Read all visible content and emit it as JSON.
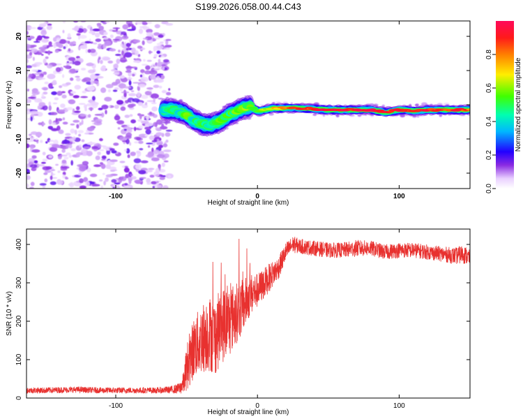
{
  "figure_title": "S199.2026.058.00.44.C43",
  "chart_data": [
    {
      "type": "heatmap",
      "name": "spectrogram",
      "title": "S199.2026.058.00.44.C43",
      "xlabel": "Height of straight line (km)",
      "ylabel": "Frequency (Hz)",
      "xlim": [
        -163,
        150
      ],
      "ylim": [
        -24.5,
        24.5
      ],
      "xticks": [
        -100,
        0,
        100
      ],
      "yticks": [
        -20,
        -10,
        0,
        10,
        20
      ],
      "noise_region_x": [
        -163,
        -65
      ],
      "ridge": {
        "x": [
          -65,
          -60,
          -55,
          -50,
          -45,
          -40,
          -35,
          -30,
          -25,
          -20,
          -15,
          -10,
          -5,
          0,
          5,
          10,
          15,
          20,
          30,
          40,
          50,
          60,
          70,
          80,
          90,
          100,
          110,
          120,
          130,
          140,
          148
        ],
        "freq": [
          -1.5,
          -1.5,
          -2.0,
          -3.0,
          -4.5,
          -5.5,
          -6.0,
          -5.5,
          -4.5,
          -3.0,
          -2.0,
          -1.0,
          -0.5,
          -2.0,
          -1.5,
          -1.0,
          -1.0,
          -1.0,
          -1.0,
          -1.2,
          -1.5,
          -1.5,
          -1.5,
          -1.5,
          -2.2,
          -1.5,
          -1.8,
          -1.5,
          -1.5,
          -1.5,
          -1.5
        ],
        "amplitude": [
          0.45,
          0.5,
          0.45,
          0.55,
          0.45,
          0.55,
          0.45,
          0.5,
          0.55,
          0.5,
          0.55,
          0.6,
          0.55,
          0.5,
          0.6,
          0.7,
          0.75,
          0.8,
          0.85,
          0.9,
          0.95,
          0.95,
          0.9,
          0.95,
          0.9,
          0.95,
          0.9,
          0.9,
          0.85,
          0.9,
          0.85
        ]
      },
      "colorbar": {
        "label": "Normalized spectral amplitude",
        "ticks": [
          0.0,
          0.2,
          0.4,
          0.6,
          0.8
        ],
        "tick_labels": [
          "0.0",
          "0.2",
          "0.4",
          "0.6",
          "0.8"
        ],
        "range": [
          0,
          1
        ]
      }
    },
    {
      "type": "line",
      "name": "snr",
      "xlabel": "Height of straight line (km)",
      "ylabel": "SNR (10 * v/v)",
      "xlim": [
        -163,
        150
      ],
      "ylim": [
        0,
        440
      ],
      "xticks": [
        -100,
        0,
        100
      ],
      "yticks": [
        0,
        100,
        200,
        300,
        400
      ],
      "color": "#e8312f",
      "series": [
        {
          "name": "SNR",
          "x": [
            -163,
            -150,
            -130,
            -110,
            -90,
            -70,
            -60,
            -55,
            -52,
            -50,
            -45,
            -40,
            -35,
            -30,
            -25,
            -20,
            -15,
            -10,
            -5,
            0,
            5,
            10,
            15,
            20,
            25,
            30,
            40,
            50,
            60,
            70,
            80,
            90,
            100,
            110,
            120,
            130,
            140,
            145,
            150
          ],
          "y": [
            20,
            20,
            22,
            20,
            20,
            20,
            22,
            25,
            40,
            80,
            130,
            150,
            170,
            160,
            190,
            200,
            220,
            240,
            270,
            280,
            300,
            320,
            340,
            380,
            400,
            395,
            390,
            385,
            385,
            390,
            390,
            380,
            385,
            385,
            380,
            375,
            370,
            375,
            365
          ],
          "spread": [
            8,
            8,
            8,
            8,
            8,
            8,
            10,
            15,
            30,
            60,
            80,
            90,
            100,
            100,
            100,
            95,
            80,
            70,
            55,
            45,
            40,
            35,
            30,
            25,
            22,
            20,
            20,
            20,
            20,
            22,
            20,
            20,
            20,
            20,
            20,
            20,
            22,
            25,
            20
          ]
        }
      ]
    }
  ]
}
